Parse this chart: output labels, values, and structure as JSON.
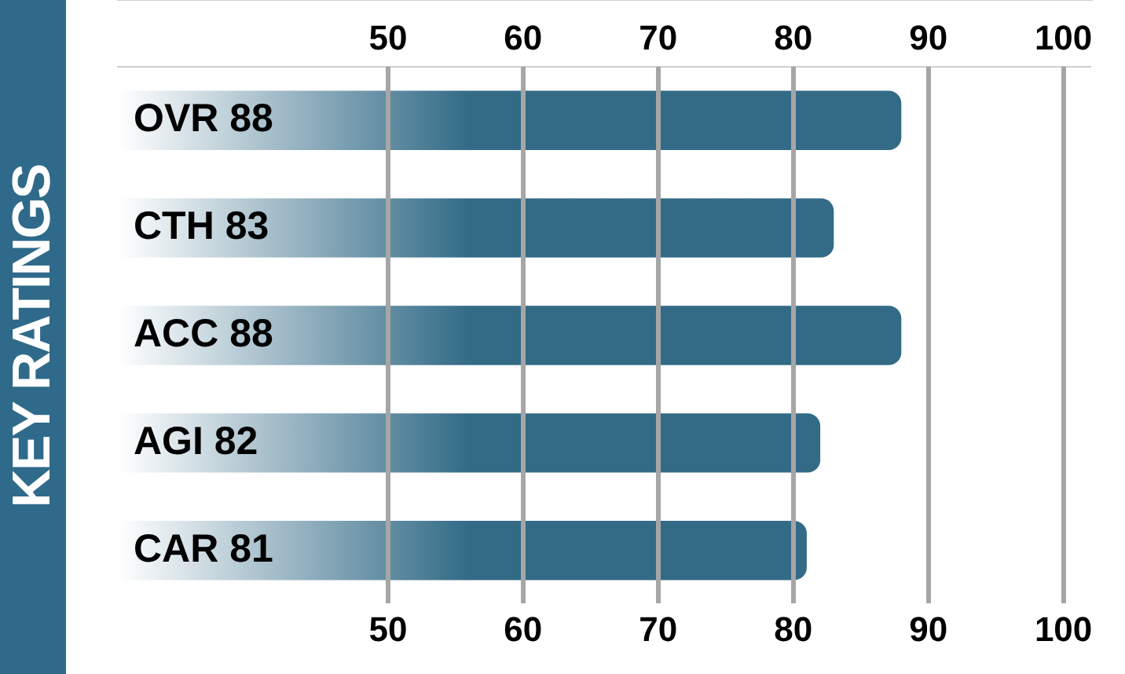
{
  "chart_data": {
    "type": "bar",
    "orientation": "horizontal",
    "title": "KEY RATINGS",
    "categories": [
      "OVR 88",
      "CTH 83",
      "ACC 88",
      "AGI 82",
      "CAR 81"
    ],
    "values": [
      88,
      83,
      88,
      82,
      81
    ],
    "color": "#336b87",
    "xlim": [
      30,
      102
    ],
    "xticks": [
      50,
      60,
      70,
      80,
      90,
      100
    ],
    "x2lim": [
      30,
      102
    ],
    "x2ticks": [
      50,
      60,
      70,
      80,
      90,
      100
    ],
    "grid": "x",
    "legend": false
  }
}
